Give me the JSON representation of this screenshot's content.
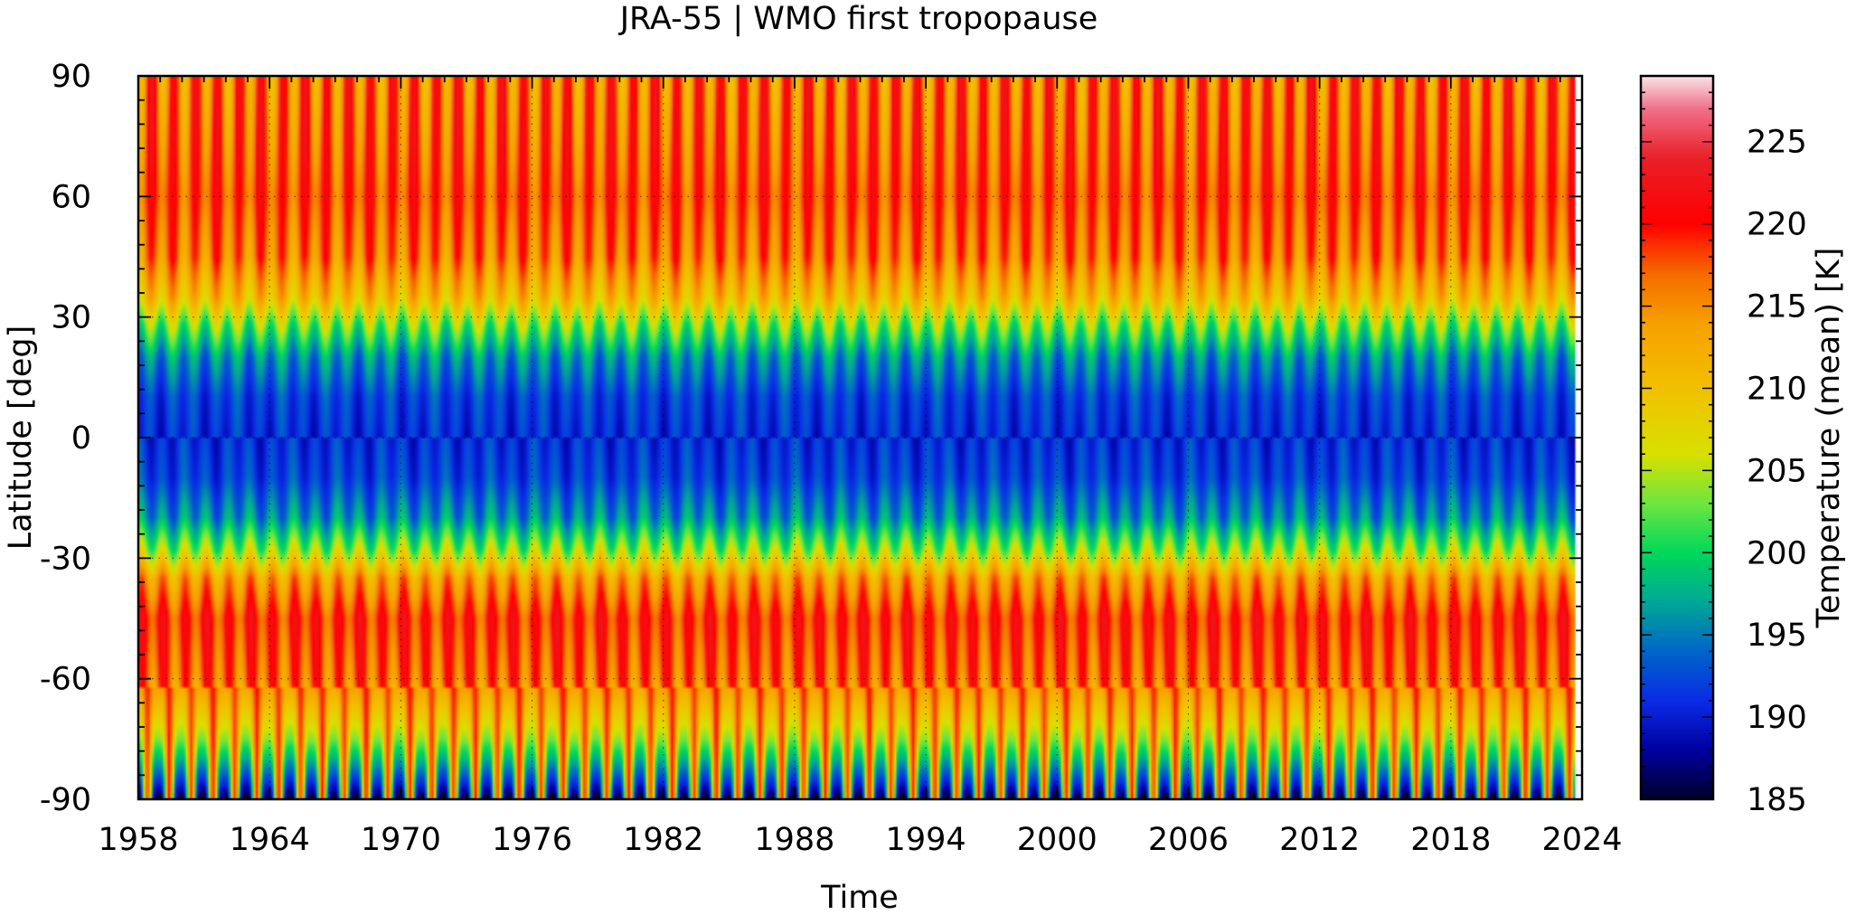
{
  "chart_data": {
    "type": "heatmap",
    "title": "JRA-55 | WMO first tropopause",
    "xlabel": "Time",
    "ylabel": "Latitude [deg]",
    "colorbar_label": "Temperature (mean) [K]",
    "xlim": [
      1958,
      2024
    ],
    "ylim": [
      -90,
      90
    ],
    "clim": [
      185,
      229
    ],
    "x_ticks": [
      1958,
      1964,
      1970,
      1976,
      1982,
      1988,
      1994,
      2000,
      2006,
      2012,
      2018,
      2024
    ],
    "y_ticks": [
      -90,
      -60,
      -30,
      0,
      30,
      60,
      90
    ],
    "colorbar_ticks": [
      185,
      190,
      195,
      200,
      205,
      210,
      215,
      220,
      225
    ],
    "grid": true,
    "data_range_years": [
      1958,
      2023.7
    ],
    "colormap": [
      {
        "value": 185,
        "color": "#000028"
      },
      {
        "value": 188,
        "color": "#0000a0"
      },
      {
        "value": 191,
        "color": "#0a2ce6"
      },
      {
        "value": 194,
        "color": "#0066c8"
      },
      {
        "value": 197,
        "color": "#00a896"
      },
      {
        "value": 200,
        "color": "#00d85a"
      },
      {
        "value": 203,
        "color": "#6ee640"
      },
      {
        "value": 206,
        "color": "#d8e000"
      },
      {
        "value": 210,
        "color": "#f2c000"
      },
      {
        "value": 214,
        "color": "#f6a000"
      },
      {
        "value": 217,
        "color": "#f56a00"
      },
      {
        "value": 220,
        "color": "#ff0000"
      },
      {
        "value": 224,
        "color": "#e8202a"
      },
      {
        "value": 227,
        "color": "#f0708a"
      },
      {
        "value": 229,
        "color": "#fbe4e8"
      }
    ],
    "latitude_profile": [
      {
        "lat": -90,
        "annual_mean": 202,
        "seasonal_amplitude": 17
      },
      {
        "lat": -75,
        "annual_mean": 211,
        "seasonal_amplitude": 10
      },
      {
        "lat": -60,
        "annual_mean": 217,
        "seasonal_amplitude": 4
      },
      {
        "lat": -45,
        "annual_mean": 219,
        "seasonal_amplitude": 3
      },
      {
        "lat": -35,
        "annual_mean": 214,
        "seasonal_amplitude": 4
      },
      {
        "lat": -28,
        "annual_mean": 204,
        "seasonal_amplitude": 4
      },
      {
        "lat": -20,
        "annual_mean": 196,
        "seasonal_amplitude": 3
      },
      {
        "lat": -10,
        "annual_mean": 192,
        "seasonal_amplitude": 2
      },
      {
        "lat": 0,
        "annual_mean": 191,
        "seasonal_amplitude": 2
      },
      {
        "lat": 10,
        "annual_mean": 192,
        "seasonal_amplitude": 2
      },
      {
        "lat": 20,
        "annual_mean": 196,
        "seasonal_amplitude": 3
      },
      {
        "lat": 28,
        "annual_mean": 203,
        "seasonal_amplitude": 4
      },
      {
        "lat": 35,
        "annual_mean": 211,
        "seasonal_amplitude": 4
      },
      {
        "lat": 45,
        "annual_mean": 216,
        "seasonal_amplitude": 4
      },
      {
        "lat": 60,
        "annual_mean": 218,
        "seasonal_amplitude": 3
      },
      {
        "lat": 75,
        "annual_mean": 217,
        "seasonal_amplitude": 5
      },
      {
        "lat": 90,
        "annual_mean": 216,
        "seasonal_amplitude": 6
      }
    ]
  }
}
